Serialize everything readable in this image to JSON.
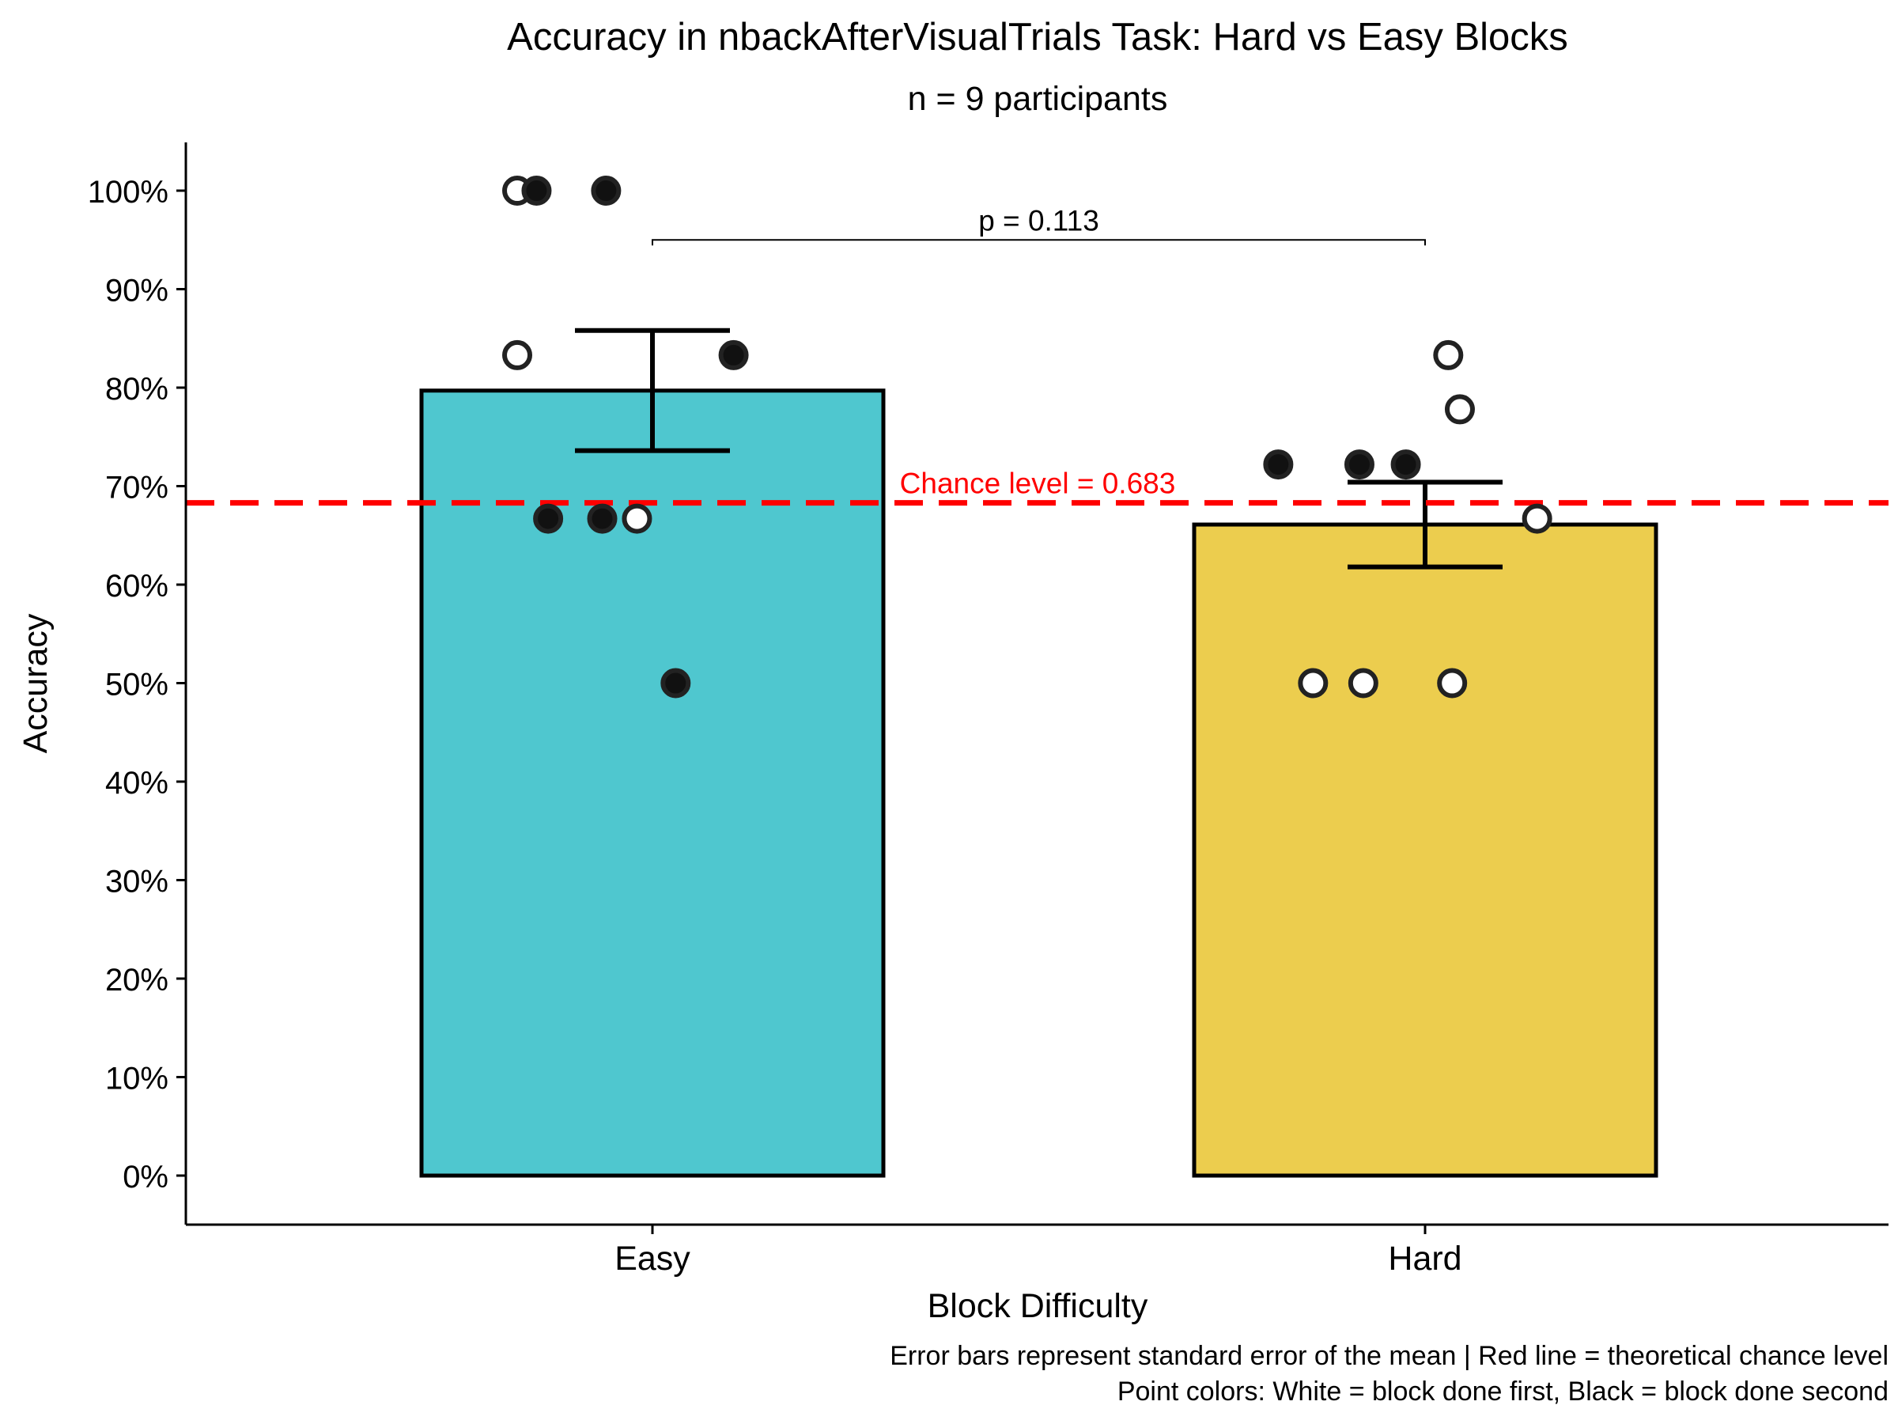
{
  "chart_data": {
    "type": "bar",
    "title": "Accuracy in nbackAfterVisualTrials Task: Hard vs Easy Blocks",
    "subtitle": "n = 9 participants",
    "xlabel": "Block Difficulty",
    "ylabel": "Accuracy",
    "categories": [
      "Easy",
      "Hard"
    ],
    "values": [
      0.797,
      0.661
    ],
    "error_bars": [
      {
        "category": "Easy",
        "low": 0.736,
        "high": 0.858
      },
      {
        "category": "Hard",
        "low": 0.618,
        "high": 0.704
      }
    ],
    "colors": {
      "Easy": "#4FC7CF",
      "Hard": "#ECCD4E",
      "chance_line": "#FF0000"
    },
    "ylim": [
      -0.05,
      1.05
    ],
    "yticks": [
      0,
      0.1,
      0.2,
      0.3,
      0.4,
      0.5,
      0.6,
      0.7,
      0.8,
      0.9,
      1.0
    ],
    "ytick_labels": [
      "0%",
      "10%",
      "20%",
      "30%",
      "40%",
      "50%",
      "60%",
      "70%",
      "80%",
      "90%",
      "100%"
    ],
    "grid": false,
    "points": [
      {
        "category": "Easy",
        "jitter": -0.175,
        "y": 1.0,
        "order": "first"
      },
      {
        "category": "Easy",
        "jitter": -0.15,
        "y": 1.0,
        "order": "second"
      },
      {
        "category": "Easy",
        "jitter": -0.06,
        "y": 1.0,
        "order": "second"
      },
      {
        "category": "Easy",
        "jitter": -0.175,
        "y": 0.833,
        "order": "first"
      },
      {
        "category": "Easy",
        "jitter": 0.105,
        "y": 0.833,
        "order": "second"
      },
      {
        "category": "Easy",
        "jitter": -0.135,
        "y": 0.667,
        "order": "second"
      },
      {
        "category": "Easy",
        "jitter": -0.065,
        "y": 0.667,
        "order": "second"
      },
      {
        "category": "Easy",
        "jitter": -0.02,
        "y": 0.667,
        "order": "first"
      },
      {
        "category": "Easy",
        "jitter": 0.03,
        "y": 0.5,
        "order": "second"
      },
      {
        "category": "Hard",
        "jitter": 0.03,
        "y": 0.833,
        "order": "first"
      },
      {
        "category": "Hard",
        "jitter": 0.045,
        "y": 0.778,
        "order": "first"
      },
      {
        "category": "Hard",
        "jitter": -0.19,
        "y": 0.722,
        "order": "second"
      },
      {
        "category": "Hard",
        "jitter": -0.085,
        "y": 0.722,
        "order": "second"
      },
      {
        "category": "Hard",
        "jitter": -0.025,
        "y": 0.722,
        "order": "second"
      },
      {
        "category": "Hard",
        "jitter": 0.145,
        "y": 0.667,
        "order": "first"
      },
      {
        "category": "Hard",
        "jitter": -0.145,
        "y": 0.5,
        "order": "first"
      },
      {
        "category": "Hard",
        "jitter": -0.08,
        "y": 0.5,
        "order": "first"
      },
      {
        "category": "Hard",
        "jitter": 0.035,
        "y": 0.5,
        "order": "first"
      }
    ],
    "chance_level": {
      "value": 0.683,
      "label": "Chance level = 0.683"
    },
    "significance": {
      "label": "p = 0.113",
      "y": 0.95,
      "from": "Easy",
      "to": "Hard"
    },
    "caption": [
      "Error bars represent standard error of the mean | Red line = theoretical chance level",
      "Point colors: White = block done first, Black = block done second"
    ]
  }
}
